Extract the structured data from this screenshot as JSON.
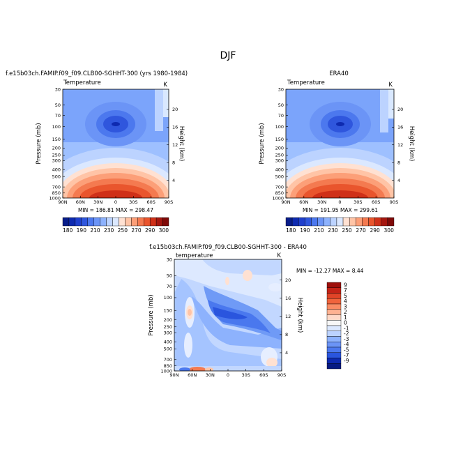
{
  "figure": {
    "main_title": "DJF"
  },
  "chart_data": [
    {
      "type": "heatmap",
      "title_left": "f.e15b03ch.FAMIP.f09_f09.CLB00-SGHHT-300 (yrs 1980-1984)",
      "title_right": "",
      "variable_label": "Temperature",
      "units": "K",
      "ylabel": "Pressure (mb)",
      "ylabel_right": "Height (km)",
      "x_ticks": [
        "90N",
        "60N",
        "30N",
        "0",
        "30S",
        "60S",
        "90S"
      ],
      "y_ticks": [
        "30",
        "50",
        "70",
        "100",
        "150",
        "200",
        "250",
        "300",
        "400",
        "500",
        "700",
        "850",
        "1000"
      ],
      "height_ticks": [
        "20",
        "16",
        "12",
        "8",
        "4"
      ],
      "stats": "MIN = 186.81   MAX = 298.47",
      "colorbar_labels": [
        "180",
        "190",
        "210",
        "230",
        "250",
        "270",
        "290",
        "300"
      ],
      "min": 186.81,
      "max": 298.47
    },
    {
      "type": "heatmap",
      "title_left": "",
      "title_right": "ERA40",
      "variable_label": "Temperature",
      "units": "K",
      "ylabel": "Pressure (mb)",
      "ylabel_right": "Height (km)",
      "x_ticks": [
        "90N",
        "60N",
        "30N",
        "0",
        "30S",
        "60S",
        "90S"
      ],
      "y_ticks": [
        "30",
        "50",
        "70",
        "100",
        "150",
        "200",
        "250",
        "300",
        "400",
        "500",
        "700",
        "850",
        "1000"
      ],
      "height_ticks": [
        "20",
        "16",
        "12",
        "8",
        "4"
      ],
      "stats": "MIN = 191.95   MAX = 299.61",
      "colorbar_labels": [
        "180",
        "190",
        "210",
        "230",
        "250",
        "270",
        "290",
        "300"
      ],
      "min": 191.95,
      "max": 299.61
    },
    {
      "type": "heatmap",
      "title_center": "f.e15b03ch.FAMIP.f09_f09.CLB00-SGHHT-300 - ERA40",
      "variable_label": "temperature",
      "units": "K",
      "ylabel": "Pressure (mb)",
      "ylabel_right": "Height (km)",
      "x_ticks": [
        "90N",
        "60N",
        "30N",
        "0",
        "30S",
        "60S",
        "90S"
      ],
      "y_ticks": [
        "30",
        "50",
        "70",
        "100",
        "150",
        "200",
        "250",
        "300",
        "400",
        "500",
        "700",
        "850",
        "1000"
      ],
      "height_ticks": [
        "20",
        "16",
        "12",
        "8",
        "4"
      ],
      "stats": "MIN = -12.27   MAX =   8.44",
      "colorbar_labels": [
        "9",
        "7",
        "5",
        "4",
        "3",
        "2",
        "1",
        "0",
        "-1",
        "-2",
        "-3",
        "-4",
        "-5",
        "-7",
        "-9"
      ],
      "min": -12.27,
      "max": 8.44
    }
  ]
}
